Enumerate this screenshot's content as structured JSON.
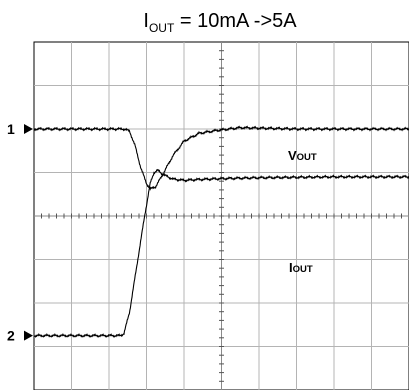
{
  "chart_data": {
    "type": "line",
    "title": {
      "prefix": "I",
      "subscript": "OUT",
      "suffix": " = 10mA ->5A"
    },
    "grid": true,
    "x_divisions": 10,
    "y_divisions": 8,
    "xlim": [
      0,
      10
    ],
    "ylim": [
      -4,
      4
    ],
    "channels": [
      {
        "id": "1",
        "label": "1",
        "level": 2.0
      },
      {
        "id": "2",
        "label": "2",
        "level": -2.75
      }
    ],
    "series": [
      {
        "name": {
          "main": "V",
          "sub": "OUT"
        },
        "channel": "1",
        "x": [
          0,
          1.0,
          2.0,
          2.4,
          2.55,
          2.7,
          2.85,
          3.0,
          3.1,
          3.25,
          3.45,
          3.7,
          4.0,
          4.4,
          4.9,
          5.2,
          5.5,
          6.0,
          7.0,
          8.0,
          9.0,
          10.0
        ],
        "values": [
          2.0,
          2.0,
          2.0,
          2.0,
          1.95,
          1.6,
          1.1,
          0.75,
          0.62,
          0.68,
          0.98,
          1.38,
          1.72,
          1.9,
          1.97,
          2.0,
          2.03,
          2.02,
          2.0,
          2.0,
          2.0,
          2.0
        ]
      },
      {
        "name": {
          "main": "I",
          "sub": "OUT"
        },
        "channel": "2",
        "x": [
          0,
          1.0,
          2.0,
          2.3,
          2.4,
          2.55,
          2.75,
          2.95,
          3.1,
          3.2,
          3.3,
          3.45,
          3.7,
          4.0,
          4.4,
          5.0,
          6.0,
          7.0,
          8.0,
          9.0,
          10.0
        ],
        "values": [
          -2.75,
          -2.75,
          -2.75,
          -2.75,
          -2.7,
          -2.2,
          -1.1,
          0.0,
          0.75,
          1.0,
          1.05,
          0.95,
          0.85,
          0.82,
          0.84,
          0.86,
          0.88,
          0.89,
          0.9,
          0.9,
          0.9
        ]
      }
    ]
  }
}
